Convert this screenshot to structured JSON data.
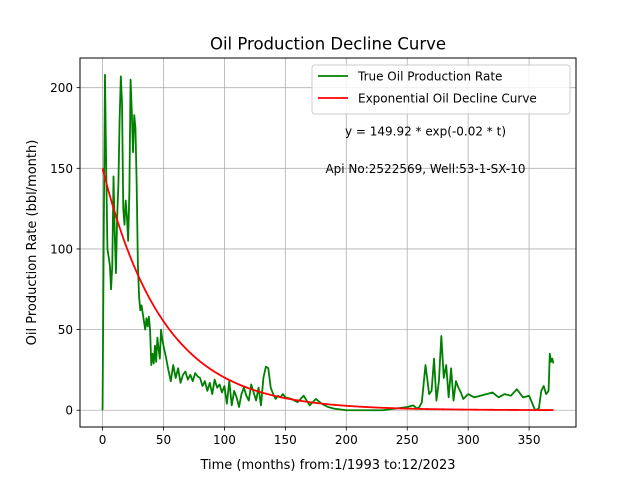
{
  "chart_data": {
    "type": "line",
    "title": "Oil Production Decline Curve",
    "xlabel": "Time (months) from:1/1993 to:12/2023",
    "ylabel": "Oil Production Rate (bbl/month)",
    "xlim": [
      -18.5,
      388.5
    ],
    "ylim": [
      -10.4,
      218.4
    ],
    "xticks": [
      0,
      50,
      100,
      150,
      200,
      250,
      300,
      350
    ],
    "yticks": [
      0,
      50,
      100,
      150,
      200
    ],
    "grid": true,
    "legend_position": "top-right",
    "annotations": [
      {
        "text": "y = 149.92 * exp(-0.02 * t)",
        "x": 265,
        "y": 173
      },
      {
        "text": "Api No:2522569, Well:53-1-SX-10",
        "x": 265,
        "y": 150
      }
    ],
    "series": [
      {
        "name": "True Oil Production Rate",
        "color": "#008000",
        "x": [
          0,
          1,
          2,
          3,
          4,
          5,
          6,
          7,
          8,
          9,
          10,
          11,
          12,
          13,
          14,
          15,
          16,
          17,
          18,
          19,
          20,
          21,
          22,
          23,
          24,
          25,
          26,
          27,
          28,
          29,
          30,
          31,
          32,
          33,
          34,
          35,
          36,
          37,
          38,
          39,
          40,
          41,
          42,
          43,
          44,
          45,
          46,
          47,
          48,
          49,
          50,
          52,
          54,
          56,
          58,
          60,
          62,
          64,
          66,
          68,
          70,
          72,
          74,
          76,
          78,
          80,
          82,
          84,
          86,
          88,
          90,
          92,
          94,
          96,
          98,
          100,
          102,
          104,
          106,
          108,
          110,
          112,
          114,
          116,
          118,
          120,
          122,
          124,
          126,
          128,
          130,
          132,
          134,
          136,
          138,
          140,
          142,
          144,
          146,
          148,
          150,
          155,
          160,
          165,
          170,
          175,
          180,
          185,
          190,
          200,
          210,
          220,
          230,
          240,
          250,
          255,
          258,
          260,
          262,
          265,
          268,
          270,
          272,
          274,
          276,
          278,
          280,
          282,
          284,
          286,
          288,
          290,
          292,
          294,
          296,
          300,
          305,
          310,
          315,
          320,
          325,
          330,
          335,
          340,
          345,
          350,
          355,
          358,
          360,
          362,
          364,
          366,
          367,
          368,
          369,
          370
        ],
        "y": [
          0,
          110,
          208,
          150,
          100,
          95,
          90,
          75,
          90,
          145,
          110,
          85,
          120,
          140,
          180,
          207,
          190,
          125,
          115,
          130,
          120,
          105,
          135,
          205,
          185,
          160,
          183,
          175,
          140,
          90,
          70,
          62,
          65,
          60,
          55,
          50,
          57,
          52,
          58,
          50,
          28,
          35,
          29,
          40,
          30,
          45,
          38,
          32,
          50,
          44,
          40,
          33,
          25,
          18,
          28,
          20,
          26,
          17,
          22,
          24,
          19,
          22,
          18,
          23,
          21,
          20,
          15,
          18,
          12,
          17,
          10,
          19,
          14,
          16,
          11,
          15,
          4,
          18,
          3,
          12,
          8,
          2,
          10,
          14,
          9,
          6,
          16,
          11,
          6,
          14,
          3,
          20,
          27,
          26,
          14,
          10,
          7,
          9,
          8,
          10,
          8,
          7,
          5,
          9,
          3,
          7,
          4,
          2,
          1,
          0,
          0,
          0,
          0,
          1,
          2,
          3,
          1,
          2,
          5,
          28,
          10,
          12,
          32,
          6,
          18,
          46,
          20,
          28,
          8,
          26,
          6,
          18,
          14,
          11,
          7,
          10,
          8,
          9,
          10,
          11,
          8,
          10,
          9,
          13,
          8,
          9,
          0,
          1,
          12,
          15,
          10,
          12,
          35,
          30,
          32,
          29
        ]
      },
      {
        "name": "Exponential Oil Decline Curve",
        "color": "#ff0000",
        "model": {
          "a": 149.92,
          "b": -0.02
        },
        "x": [
          0,
          10,
          20,
          30,
          40,
          50,
          60,
          70,
          80,
          90,
          100,
          110,
          120,
          130,
          140,
          150,
          160,
          170,
          180,
          190,
          200,
          210,
          220,
          230,
          240,
          250,
          260,
          270,
          280,
          290,
          300,
          310,
          320,
          330,
          340,
          350,
          360,
          370
        ],
        "y": [
          149.92,
          122.7,
          100.5,
          82.3,
          67.4,
          55.2,
          45.2,
          37.0,
          30.3,
          24.8,
          20.3,
          16.6,
          13.6,
          11.1,
          9.1,
          7.5,
          6.1,
          5.0,
          4.1,
          3.4,
          2.7,
          2.3,
          1.8,
          1.5,
          1.2,
          1.0,
          0.8,
          0.7,
          0.6,
          0.5,
          0.4,
          0.3,
          0.25,
          0.2,
          0.17,
          0.14,
          0.11,
          0.09
        ]
      }
    ]
  }
}
